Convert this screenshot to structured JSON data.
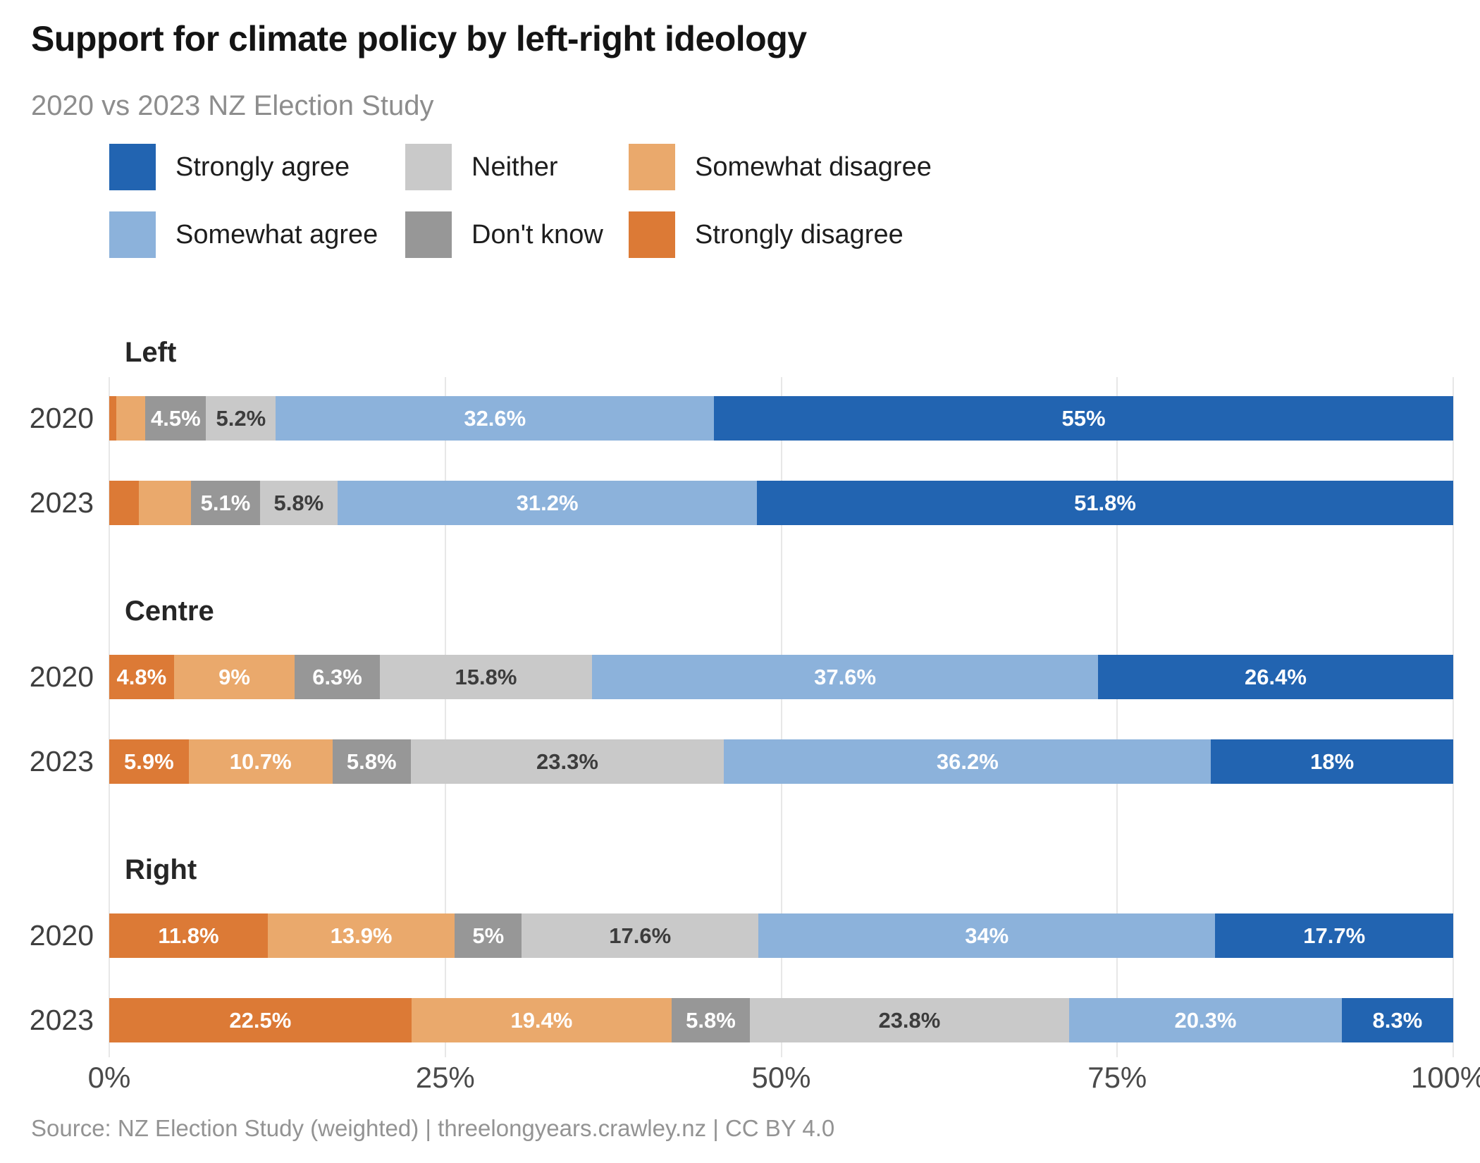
{
  "title": "Support for climate policy by left-right ideology",
  "subtitle": "2020 vs 2023 NZ Election Study",
  "source": "Source: NZ Election Study (weighted) | threelongyears.crawley.nz | CC BY 4.0",
  "colors": {
    "strongly_agree": "#2264B1",
    "somewhat_agree": "#8CB2DB",
    "neither": "#C9C9C9",
    "dont_know": "#979797",
    "somewhat_disagree": "#EAA96C",
    "strongly_disagree": "#DC7A36",
    "gridline": "#E7E7E7",
    "dark_label": "#3C3C3C",
    "light_label": "#FFFFFF"
  },
  "legend": [
    {
      "label": "Strongly agree",
      "category": "Strongly agree",
      "color": "#2264B1"
    },
    {
      "label": "Neither",
      "category": "Neither",
      "color": "#C9C9C9"
    },
    {
      "label": "Somewhat disagree",
      "category": "Somewhat disagree",
      "color": "#EAA96C"
    },
    {
      "label": "Somewhat agree",
      "category": "Somewhat agree",
      "color": "#8CB2DB"
    },
    {
      "label": "Don't know",
      "category": "Don't know",
      "color": "#979797"
    },
    {
      "label": "Strongly disagree",
      "category": "Strongly disagree",
      "color": "#DC7A36"
    }
  ],
  "chart_data": {
    "type": "bar",
    "orientation": "horizontal",
    "stacked": true,
    "unit": "%",
    "xlim": [
      0,
      100
    ],
    "x_ticks": [
      "0%",
      "25%",
      "50%",
      "75%",
      "100%"
    ],
    "x_tick_values": [
      0,
      25,
      50,
      75,
      100
    ],
    "grid": true,
    "legend_position": "top",
    "segment_order": [
      "Strongly disagree",
      "Somewhat disagree",
      "Don't know",
      "Neither",
      "Somewhat agree",
      "Strongly agree"
    ],
    "segment_colors": {
      "Strongly disagree": "#DC7A36",
      "Somewhat disagree": "#EAA96C",
      "Don't know": "#979797",
      "Neither": "#C9C9C9",
      "Somewhat agree": "#8CB2DB",
      "Strongly agree": "#2264B1"
    },
    "groups": [
      {
        "name": "Left",
        "bars": [
          {
            "year": "2020",
            "segments": [
              {
                "category": "Strongly disagree",
                "value": 0.5,
                "label": ""
              },
              {
                "category": "Somewhat disagree",
                "value": 2.2,
                "label": ""
              },
              {
                "category": "Don't know",
                "value": 4.5,
                "label": "4.5%"
              },
              {
                "category": "Neither",
                "value": 5.2,
                "label": "5.2%"
              },
              {
                "category": "Somewhat agree",
                "value": 32.6,
                "label": "32.6%"
              },
              {
                "category": "Strongly agree",
                "value": 55,
                "label": "55%"
              }
            ]
          },
          {
            "year": "2023",
            "segments": [
              {
                "category": "Strongly disagree",
                "value": 2.2,
                "label": ""
              },
              {
                "category": "Somewhat disagree",
                "value": 3.9,
                "label": ""
              },
              {
                "category": "Don't know",
                "value": 5.1,
                "label": "5.1%"
              },
              {
                "category": "Neither",
                "value": 5.8,
                "label": "5.8%"
              },
              {
                "category": "Somewhat agree",
                "value": 31.2,
                "label": "31.2%"
              },
              {
                "category": "Strongly agree",
                "value": 51.8,
                "label": "51.8%"
              }
            ]
          }
        ]
      },
      {
        "name": "Centre",
        "bars": [
          {
            "year": "2020",
            "segments": [
              {
                "category": "Strongly disagree",
                "value": 4.8,
                "label": "4.8%"
              },
              {
                "category": "Somewhat disagree",
                "value": 9,
                "label": "9%"
              },
              {
                "category": "Don't know",
                "value": 6.3,
                "label": "6.3%"
              },
              {
                "category": "Neither",
                "value": 15.8,
                "label": "15.8%"
              },
              {
                "category": "Somewhat agree",
                "value": 37.6,
                "label": "37.6%"
              },
              {
                "category": "Strongly agree",
                "value": 26.4,
                "label": "26.4%"
              }
            ]
          },
          {
            "year": "2023",
            "segments": [
              {
                "category": "Strongly disagree",
                "value": 5.9,
                "label": "5.9%"
              },
              {
                "category": "Somewhat disagree",
                "value": 10.7,
                "label": "10.7%"
              },
              {
                "category": "Don't know",
                "value": 5.8,
                "label": "5.8%"
              },
              {
                "category": "Neither",
                "value": 23.3,
                "label": "23.3%"
              },
              {
                "category": "Somewhat agree",
                "value": 36.2,
                "label": "36.2%"
              },
              {
                "category": "Strongly agree",
                "value": 18,
                "label": "18%"
              }
            ]
          }
        ]
      },
      {
        "name": "Right",
        "bars": [
          {
            "year": "2020",
            "segments": [
              {
                "category": "Strongly disagree",
                "value": 11.8,
                "label": "11.8%"
              },
              {
                "category": "Somewhat disagree",
                "value": 13.9,
                "label": "13.9%"
              },
              {
                "category": "Don't know",
                "value": 5,
                "label": "5%"
              },
              {
                "category": "Neither",
                "value": 17.6,
                "label": "17.6%"
              },
              {
                "category": "Somewhat agree",
                "value": 34,
                "label": "34%"
              },
              {
                "category": "Strongly agree",
                "value": 17.7,
                "label": "17.7%"
              }
            ]
          },
          {
            "year": "2023",
            "segments": [
              {
                "category": "Strongly disagree",
                "value": 22.5,
                "label": "22.5%"
              },
              {
                "category": "Somewhat disagree",
                "value": 19.4,
                "label": "19.4%"
              },
              {
                "category": "Don't know",
                "value": 5.8,
                "label": "5.8%"
              },
              {
                "category": "Neither",
                "value": 23.8,
                "label": "23.8%"
              },
              {
                "category": "Somewhat agree",
                "value": 20.3,
                "label": "20.3%"
              },
              {
                "category": "Strongly agree",
                "value": 8.3,
                "label": "8.3%"
              }
            ]
          }
        ]
      }
    ]
  }
}
